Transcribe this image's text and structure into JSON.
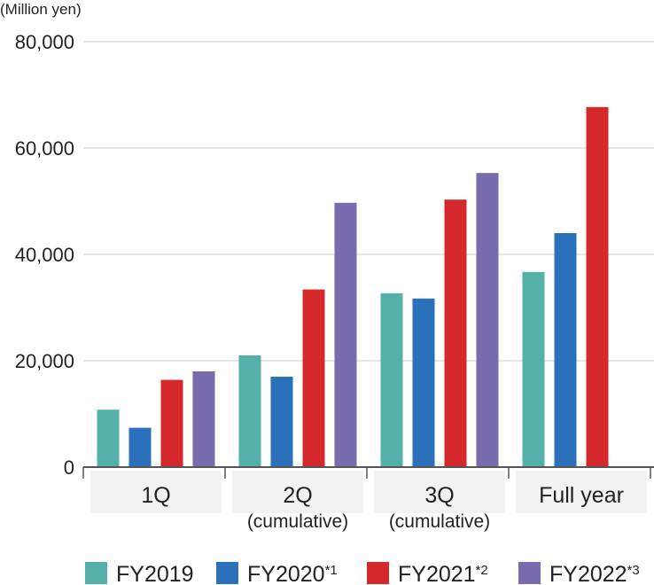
{
  "chart_data": {
    "type": "bar",
    "ylabel": "(Million yen)",
    "ylim": [
      0,
      80000
    ],
    "yticks": [
      {
        "value": 0,
        "label": "0"
      },
      {
        "value": 20000,
        "label": "20,000"
      },
      {
        "value": 40000,
        "label": "40,000"
      },
      {
        "value": 60000,
        "label": "60,000"
      },
      {
        "value": 80000,
        "label": "80,000"
      }
    ],
    "grid": true,
    "legend_position": "bottom",
    "categories": [
      {
        "label": "1Q",
        "sublabel": ""
      },
      {
        "label": "2Q",
        "sublabel": "(cumulative)"
      },
      {
        "label": "3Q",
        "sublabel": "(cumulative)"
      },
      {
        "label": "Full year",
        "sublabel": ""
      }
    ],
    "series": [
      {
        "name": "FY2019",
        "note": "",
        "color": "#56b0aa",
        "values": [
          10800,
          21000,
          32700,
          36700
        ]
      },
      {
        "name": "FY2020",
        "note": "*1",
        "color": "#2a70ba",
        "values": [
          7400,
          17000,
          31700,
          44000
        ]
      },
      {
        "name": "FY2021",
        "note": "*2",
        "color": "#d4282b",
        "values": [
          16400,
          33400,
          50300,
          67700
        ]
      },
      {
        "name": "FY2022",
        "note": "*3",
        "color": "#7a6bb0",
        "values": [
          18000,
          49700,
          55300,
          null
        ]
      }
    ]
  }
}
